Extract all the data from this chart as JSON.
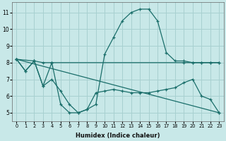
{
  "xlabel": "Humidex (Indice chaleur)",
  "bg_color": "#c8e8e8",
  "grid_color": "#a8d0d0",
  "line_color": "#1a6e6a",
  "xlim": [
    -0.5,
    23.5
  ],
  "ylim": [
    4.5,
    11.6
  ],
  "yticks": [
    5,
    6,
    7,
    8,
    9,
    10,
    11
  ],
  "xticks": [
    0,
    1,
    2,
    3,
    4,
    5,
    6,
    7,
    8,
    9,
    10,
    11,
    12,
    13,
    14,
    15,
    16,
    17,
    18,
    19,
    20,
    21,
    22,
    23
  ],
  "line1_x": [
    0,
    1,
    2,
    3,
    4,
    5,
    6,
    7,
    8,
    9,
    10,
    11,
    12,
    13,
    14,
    15,
    16,
    17,
    18,
    19,
    20,
    21,
    22,
    23
  ],
  "line1_y": [
    8.2,
    7.5,
    8.1,
    6.6,
    8.0,
    5.5,
    5.0,
    5.0,
    5.2,
    5.5,
    8.5,
    9.5,
    10.5,
    11.0,
    11.2,
    11.2,
    10.5,
    8.6,
    8.1,
    8.1,
    8.0,
    8.0,
    8.0,
    8.0
  ],
  "line2_x": [
    0,
    1,
    2,
    3,
    4,
    5,
    6,
    7,
    8,
    9,
    10,
    11,
    12,
    13,
    14,
    15,
    16,
    17,
    18,
    19,
    20,
    21,
    22,
    23
  ],
  "line2_y": [
    8.2,
    7.5,
    8.1,
    6.6,
    7.0,
    6.3,
    5.5,
    5.0,
    5.2,
    6.2,
    6.3,
    6.4,
    6.3,
    6.2,
    6.2,
    6.2,
    6.3,
    6.4,
    6.5,
    6.8,
    7.0,
    6.0,
    5.8,
    5.0
  ],
  "line3_x": [
    0,
    2,
    3,
    4,
    19,
    20,
    21,
    22,
    23
  ],
  "line3_y": [
    8.2,
    8.1,
    8.0,
    8.0,
    8.0,
    8.0,
    8.0,
    8.0,
    8.0
  ],
  "line4_x": [
    0,
    23
  ],
  "line4_y": [
    8.2,
    5.0
  ]
}
